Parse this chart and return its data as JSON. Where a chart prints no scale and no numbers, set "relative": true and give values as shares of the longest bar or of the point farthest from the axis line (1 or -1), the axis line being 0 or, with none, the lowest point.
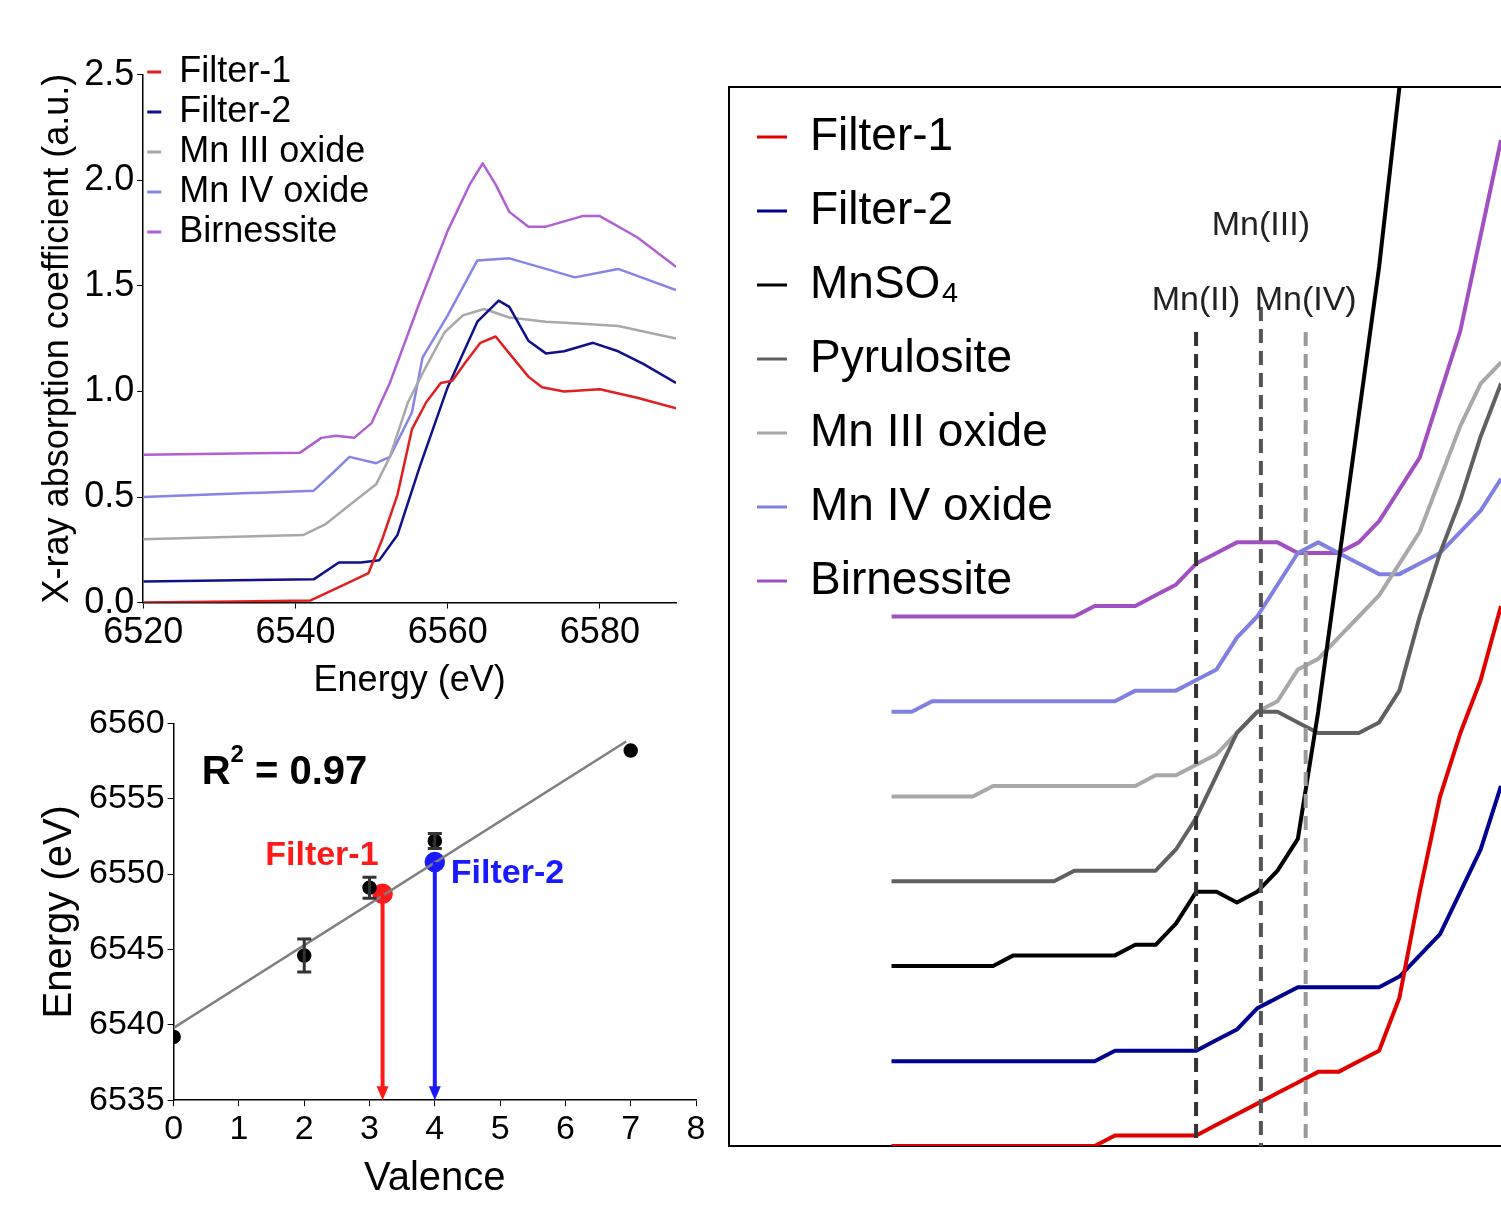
{
  "chart_data": [
    {
      "type": "line",
      "xlabel": "Energy (eV)",
      "ylabel": "X-ray absorption coefficient (a.u.)",
      "xlim": [
        6520,
        6590
      ],
      "xticks": [
        6520,
        6540,
        6560,
        6580
      ],
      "ylim": [
        0,
        2.5
      ],
      "yticks": [
        {
          "value": 0,
          "label": "0.0"
        },
        {
          "value": 0.5,
          "label": "0.5"
        },
        {
          "value": 1,
          "label": "1.0"
        },
        {
          "value": 1.5,
          "label": "1.5"
        },
        {
          "value": 2,
          "label": "2.0"
        },
        {
          "value": 2.5,
          "label": "2.5"
        }
      ],
      "legend": "top left",
      "series": [
        {
          "name": "Filter-1",
          "color": "#e02020",
          "x": [
            6520,
            6542,
            6546.7,
            6549.6,
            6551.4,
            6553.4,
            6555.3,
            6557.2,
            6559.1,
            6560.6,
            6562.4,
            6564.3,
            6566.3,
            6568.1,
            6570.6,
            6572.4,
            6575.3,
            6580,
            6584.9,
            6590
          ],
          "values": [
            0,
            0.01,
            0.09,
            0.14,
            0.3,
            0.51,
            0.82,
            0.95,
            1.04,
            1.05,
            1.14,
            1.23,
            1.26,
            1.18,
            1.07,
            1.02,
            1,
            1.01,
            0.97,
            0.92
          ]
        },
        {
          "name": "Filter-2",
          "color": "#10108a",
          "x": [
            6520,
            6542.4,
            6545.7,
            6548.6,
            6551,
            6553.4,
            6556.3,
            6560,
            6563.9,
            6566.7,
            6568.1,
            6570.6,
            6572.9,
            6575.3,
            6579.1,
            6582.4,
            6585.7,
            6590
          ],
          "values": [
            0.1,
            0.11,
            0.19,
            0.19,
            0.2,
            0.32,
            0.64,
            1.02,
            1.33,
            1.43,
            1.4,
            1.24,
            1.18,
            1.19,
            1.23,
            1.19,
            1.13,
            1.04
          ]
        },
        {
          "name": "Mn III oxide",
          "color": "#a8a8a8",
          "x": [
            6520,
            6541,
            6543.9,
            6546.7,
            6550.6,
            6552.4,
            6554.8,
            6557.2,
            6559.6,
            6562,
            6564.8,
            6568.1,
            6572.9,
            6577.7,
            6582.4,
            6590
          ],
          "values": [
            0.3,
            0.32,
            0.37,
            0.45,
            0.56,
            0.69,
            0.95,
            1.12,
            1.28,
            1.36,
            1.39,
            1.35,
            1.33,
            1.32,
            1.31,
            1.25
          ]
        },
        {
          "name": "Mn IV oxide",
          "color": "#8585e8",
          "x": [
            6520,
            6542.4,
            6544.8,
            6547.1,
            6550.6,
            6552.4,
            6555.3,
            6556.7,
            6560,
            6563.9,
            6568.1,
            6572.9,
            6576.7,
            6582.4,
            6590
          ],
          "values": [
            0.5,
            0.53,
            0.61,
            0.69,
            0.66,
            0.69,
            0.9,
            1.16,
            1.36,
            1.62,
            1.63,
            1.58,
            1.54,
            1.58,
            1.48
          ]
        },
        {
          "name": "Birnessite",
          "color": "#b060d0",
          "x": [
            6520,
            6540.6,
            6543.4,
            6545.3,
            6547.7,
            6550,
            6552.4,
            6556.3,
            6560,
            6562.9,
            6564.6,
            6566.3,
            6568.1,
            6570.6,
            6572.9,
            6577.7,
            6580,
            6584.9,
            6590
          ],
          "values": [
            0.7,
            0.71,
            0.78,
            0.79,
            0.78,
            0.85,
            1.04,
            1.42,
            1.76,
            1.98,
            2.08,
            1.98,
            1.85,
            1.78,
            1.78,
            1.83,
            1.83,
            1.73,
            1.59
          ]
        }
      ]
    },
    {
      "type": "scatter",
      "xlabel": "Valence",
      "ylabel": "Energy (eV)",
      "xlim": [
        0,
        8
      ],
      "xticks": [
        0,
        1,
        2,
        3,
        4,
        5,
        6,
        7,
        8
      ],
      "ylim": [
        6535,
        6560
      ],
      "yticks": [
        6535,
        6540,
        6545,
        6550,
        6555,
        6560
      ],
      "annotations": [
        "R$^{2}$ = 0.97"
      ],
      "marker": "circle",
      "series": [
        {
          "color": "#000000",
          "x": [
            0,
            2,
            3,
            4,
            7
          ],
          "values": [
            6539.2,
            6544.6,
            6549.1,
            6552.2,
            6558.2
          ],
          "errors": [
            null,
            1.1,
            0.7,
            0.5,
            null
          ]
        },
        {
          "type": "line",
          "marker": "none",
          "color": "#808080",
          "x": [
            0,
            6.93
          ],
          "values": [
            6539.8,
            6558.8
          ]
        },
        {
          "name": "Filter-1",
          "color": "#ff1a1a",
          "x": [
            3.2
          ],
          "values": [
            6548.7
          ]
        },
        {
          "name": "Filter-2",
          "color": "#1a1aff",
          "x": [
            4
          ],
          "values": [
            6550.8
          ]
        }
      ]
    },
    {
      "type": "line",
      "relative": true,
      "tick_labels": false,
      "legend": "top left",
      "categories": [
        null,
        null,
        null,
        null,
        null,
        null,
        null,
        null,
        null,
        null,
        null,
        null,
        null,
        null,
        null,
        null,
        null,
        null,
        null,
        null,
        null,
        null,
        null,
        null,
        null,
        null,
        null,
        null,
        null,
        null,
        null,
        null,
        null,
        null,
        null,
        null,
        null,
        null,
        null
      ],
      "annotations": [
        "Mn(II)",
        "Mn(III)",
        "Mn(IV)"
      ],
      "series": [
        {
          "name": "Filter-1",
          "color": "#e00000",
          "values": [
            null,
            null,
            null,
            null,
            null,
            null,
            null,
            null,
            0,
            0,
            0,
            0,
            0,
            0,
            0,
            0,
            0,
            0,
            0,
            0.01,
            0.01,
            0.01,
            0.01,
            0.01,
            0.02,
            0.03,
            0.04,
            0.05,
            0.06,
            0.07,
            0.07,
            0.08,
            0.09,
            0.14,
            0.24,
            0.33,
            0.39,
            0.44,
            0.51
          ]
        },
        {
          "name": "Filter-2",
          "color": "#000090",
          "values": [
            null,
            null,
            null,
            null,
            null,
            null,
            null,
            null,
            0.08,
            0.08,
            0.08,
            0.08,
            0.08,
            0.08,
            0.08,
            0.08,
            0.08,
            0.08,
            0.08,
            0.09,
            0.09,
            0.09,
            0.09,
            0.09,
            0.1,
            0.11,
            0.13,
            0.14,
            0.15,
            0.15,
            0.15,
            0.15,
            0.15,
            0.16,
            0.18,
            0.2,
            0.24,
            0.28,
            0.34
          ]
        },
        {
          "name": "MnSO₄",
          "color": "#000000",
          "values": [
            null,
            null,
            null,
            null,
            null,
            null,
            null,
            null,
            0.17,
            0.17,
            0.17,
            0.17,
            0.17,
            0.17,
            0.18,
            0.18,
            0.18,
            0.18,
            0.18,
            0.18,
            0.19,
            0.19,
            0.21,
            0.24,
            0.24,
            0.23,
            0.24,
            0.26,
            0.29,
            0.41,
            0.55,
            0.69,
            0.83,
            1,
            null,
            null,
            null,
            null,
            null
          ]
        },
        {
          "name": "Pyrulosite",
          "color": "#606060",
          "values": [
            null,
            null,
            null,
            null,
            null,
            null,
            null,
            null,
            0.25,
            0.25,
            0.25,
            0.25,
            0.25,
            0.25,
            0.25,
            0.25,
            0.25,
            0.26,
            0.26,
            0.26,
            0.26,
            0.26,
            0.28,
            0.31,
            0.35,
            0.39,
            0.41,
            0.41,
            0.4,
            0.39,
            0.39,
            0.39,
            0.4,
            0.43,
            0.5,
            0.56,
            0.61,
            0.67,
            0.72
          ]
        },
        {
          "name": "Mn III oxide",
          "color": "#a8a8a8",
          "values": [
            null,
            null,
            null,
            null,
            null,
            null,
            null,
            null,
            0.33,
            0.33,
            0.33,
            0.33,
            0.33,
            0.34,
            0.34,
            0.34,
            0.34,
            0.34,
            0.34,
            0.34,
            0.34,
            0.35,
            0.35,
            0.36,
            0.37,
            0.39,
            0.41,
            0.42,
            0.45,
            0.46,
            0.48,
            0.5,
            0.52,
            0.55,
            0.58,
            0.63,
            0.68,
            0.72,
            0.74
          ]
        },
        {
          "name": "Mn IV oxide",
          "color": "#8080e0",
          "values": [
            null,
            null,
            null,
            null,
            null,
            null,
            null,
            null,
            0.41,
            0.41,
            0.42,
            0.42,
            0.42,
            0.42,
            0.42,
            0.42,
            0.42,
            0.42,
            0.42,
            0.42,
            0.43,
            0.43,
            0.43,
            0.44,
            0.45,
            0.48,
            0.5,
            0.53,
            0.56,
            0.57,
            0.56,
            0.55,
            0.54,
            0.54,
            0.55,
            0.56,
            0.58,
            0.6,
            0.63
          ]
        },
        {
          "name": "Birnessite",
          "color": "#a050c0",
          "values": [
            null,
            null,
            null,
            null,
            null,
            null,
            null,
            null,
            0.5,
            0.5,
            0.5,
            0.5,
            0.5,
            0.5,
            0.5,
            0.5,
            0.5,
            0.5,
            0.51,
            0.51,
            0.51,
            0.52,
            0.53,
            0.55,
            0.56,
            0.57,
            0.57,
            0.57,
            0.56,
            0.56,
            0.56,
            0.57,
            0.59,
            0.62,
            0.65,
            0.71,
            0.77,
            0.86,
            0.95
          ]
        }
      ]
    }
  ]
}
